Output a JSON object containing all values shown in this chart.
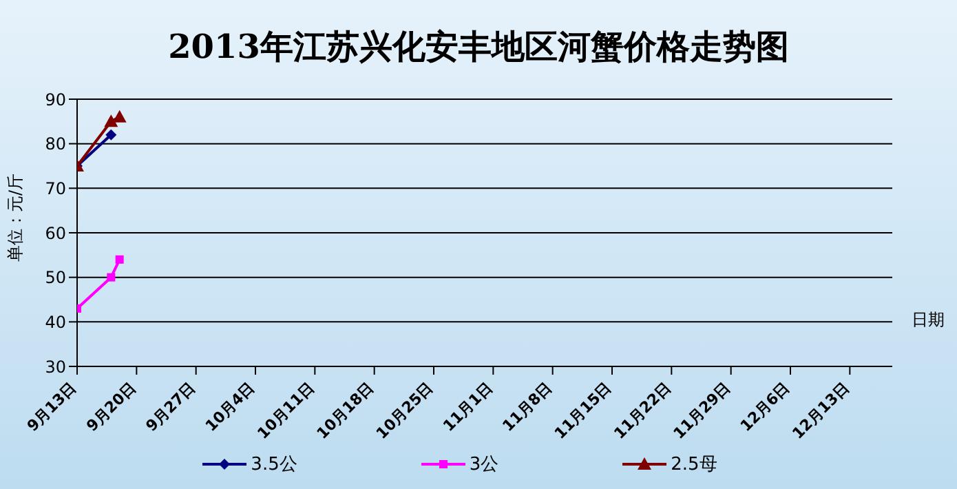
{
  "chart_data": {
    "type": "line",
    "title": "2013年江苏兴化安丰地区河蟹价格走势图",
    "xlabel": "日期",
    "ylabel": "单位：元/斤",
    "x": [
      "2013-09-13",
      "2013-09-17",
      "2013-09-18"
    ],
    "series": [
      {
        "name": "3.5公",
        "color": "#000080",
        "marker": "diamond",
        "values": [
          75,
          82,
          null
        ]
      },
      {
        "name": "3公",
        "color": "#ff00ff",
        "marker": "square",
        "values": [
          43,
          50,
          54
        ]
      },
      {
        "name": "2.5母",
        "color": "#800000",
        "marker": "triangle",
        "values": [
          75,
          85,
          86
        ]
      }
    ],
    "xlim": [
      "2013-09-13",
      "2013-12-18"
    ],
    "xticks": [
      {
        "value": "2013-09-13",
        "label": "9月13日"
      },
      {
        "value": "2013-09-20",
        "label": "9月20日"
      },
      {
        "value": "2013-09-27",
        "label": "9月27日"
      },
      {
        "value": "2013-10-04",
        "label": "10月4日"
      },
      {
        "value": "2013-10-11",
        "label": "10月11日"
      },
      {
        "value": "2013-10-18",
        "label": "10月18日"
      },
      {
        "value": "2013-10-25",
        "label": "10月25日"
      },
      {
        "value": "2013-11-01",
        "label": "11月1日"
      },
      {
        "value": "2013-11-08",
        "label": "11月8日"
      },
      {
        "value": "2013-11-15",
        "label": "11月15日"
      },
      {
        "value": "2013-11-22",
        "label": "11月22日"
      },
      {
        "value": "2013-11-29",
        "label": "11月29日"
      },
      {
        "value": "2013-12-06",
        "label": "12月6日"
      },
      {
        "value": "2013-12-13",
        "label": "12月13日"
      }
    ],
    "ylim": [
      30,
      90
    ],
    "yticks": [
      30,
      40,
      50,
      60,
      70,
      80,
      90
    ],
    "grid": "y",
    "legend": "bottom"
  }
}
